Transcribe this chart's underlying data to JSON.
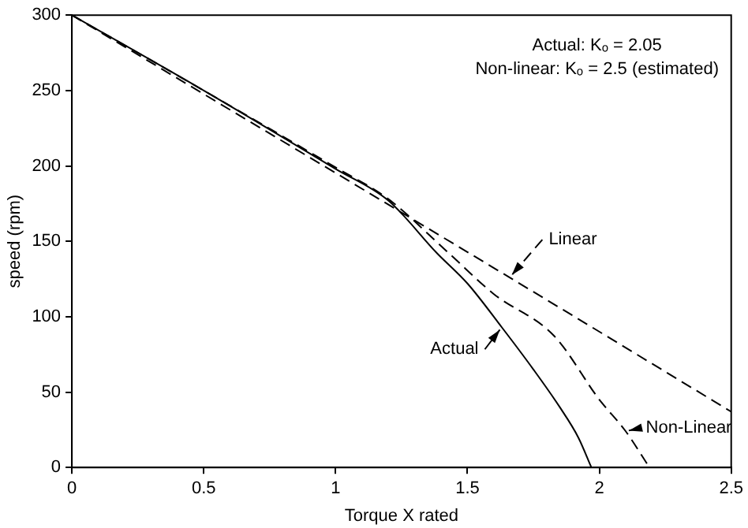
{
  "chart_data": {
    "type": "line",
    "xlabel": "Torque X rated",
    "ylabel": "speed (rpm)",
    "xlim": [
      0,
      2.5
    ],
    "xticks": [
      0,
      0.5,
      1,
      1.5,
      2,
      2.5
    ],
    "ylim": [
      0,
      300
    ],
    "yticks": [
      0,
      50,
      100,
      150,
      200,
      250,
      300
    ],
    "marker": "none",
    "annotations": [
      "Actual: Kₒ = 2.05",
      "Non-linear: Kₒ = 2.5 (estimated)"
    ],
    "series": [
      {
        "name": "Linear",
        "color": "#000000",
        "line_style": "dashed",
        "x": [
          0,
          1.66,
          2.5
        ],
        "values": [
          300,
          126,
          37
        ]
      },
      {
        "name": "Non-Linear",
        "color": "#000000",
        "line_style": "dashed",
        "x": [
          0,
          0.5,
          1,
          1.2,
          1.43,
          1.6,
          1.83,
          2.0,
          2.1,
          2.19
        ],
        "values": [
          300,
          250,
          199,
          178,
          142,
          115,
          87,
          45,
          24,
          0
        ]
      },
      {
        "name": "Actual",
        "color": "#000000",
        "line_style": "solid",
        "x": [
          0,
          0.5,
          1,
          1.2,
          1.385,
          1.5,
          1.63,
          1.75,
          1.85,
          1.92,
          1.97
        ],
        "values": [
          300,
          250,
          198,
          177,
          142,
          122,
          93,
          65,
          40,
          20,
          0
        ]
      }
    ]
  }
}
